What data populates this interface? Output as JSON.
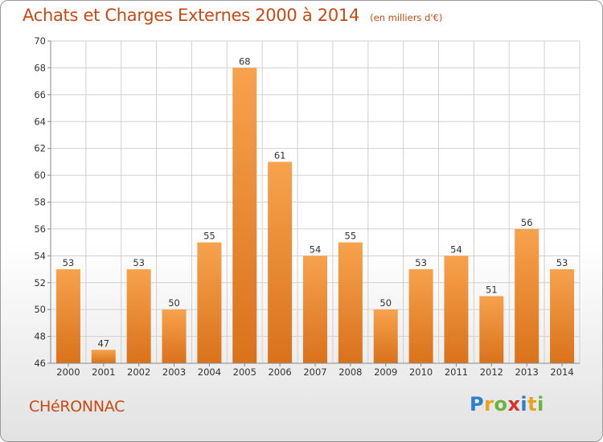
{
  "title": "Achats et Charges Externes 2000 à 2014",
  "subtitle": "(en milliers d'€)",
  "place": "CHéRONNAC",
  "logo": {
    "letters": [
      "P",
      "r",
      "o",
      "x",
      "i",
      "t",
      "i"
    ],
    "colors": [
      "#2a7fd1",
      "#e9a21a",
      "#6cb33f",
      "#d6342c",
      "#2a7fd1",
      "#e9a21a",
      "#6cb33f"
    ]
  },
  "colors": {
    "bar_light": "#f7a24d",
    "bar_dark": "#d9721b",
    "text_accent": "#c84a12",
    "grid": "#d0d0d0"
  },
  "chart_data": {
    "type": "bar",
    "categories": [
      "2000",
      "2001",
      "2002",
      "2003",
      "2004",
      "2005",
      "2006",
      "2007",
      "2008",
      "2009",
      "2010",
      "2011",
      "2012",
      "2013",
      "2014"
    ],
    "values": [
      53,
      47,
      53,
      50,
      55,
      68,
      61,
      54,
      55,
      50,
      53,
      54,
      51,
      56,
      53
    ],
    "ylim": [
      46,
      70
    ],
    "yticks": [
      46,
      48,
      50,
      52,
      54,
      56,
      58,
      60,
      62,
      64,
      66,
      68,
      70
    ],
    "title": "Achats et Charges Externes 2000 à 2014",
    "xlabel": "",
    "ylabel": "",
    "grid": true,
    "data_labels": true
  }
}
